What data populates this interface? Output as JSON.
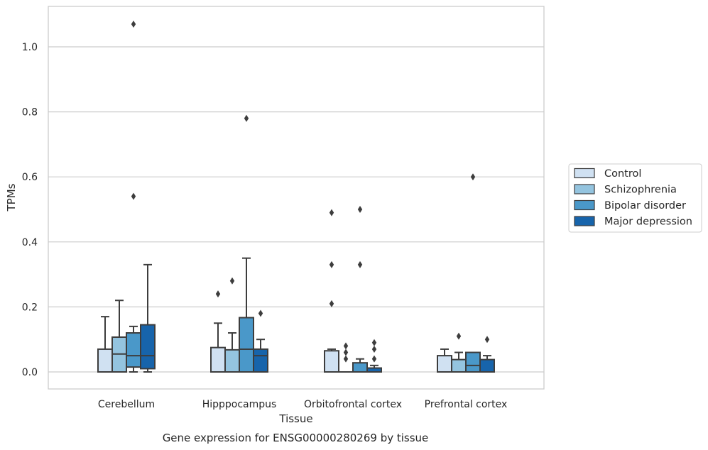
{
  "chart_data": {
    "type": "box",
    "xlabel": "Tissue",
    "ylabel": "TPMs",
    "caption": "Gene expression for ENSG00000280269 by tissue",
    "categories": [
      "Cerebellum",
      "Hipppocampus",
      "Orbitofrontal cortex",
      "Prefrontal cortex"
    ],
    "yticks": [
      0.0,
      0.2,
      0.4,
      0.6,
      0.8,
      1.0
    ],
    "ytick_labels": [
      "0.0",
      "0.2",
      "0.4",
      "0.6",
      "0.8",
      "1.0"
    ],
    "ylim": [
      -0.05,
      1.13
    ],
    "grid": "horizontal",
    "legend_position": "right",
    "series": [
      {
        "name": "Control",
        "color": "#d0e1f2",
        "boxes": [
          {
            "min": 0.0,
            "q1": 0.0,
            "median": 0.0,
            "q3": 0.07,
            "max": 0.17,
            "outliers": []
          },
          {
            "min": 0.0,
            "q1": 0.0,
            "median": 0.0,
            "q3": 0.075,
            "max": 0.15,
            "outliers": [
              0.24
            ]
          },
          {
            "min": 0.0,
            "q1": 0.0,
            "median": 0.0,
            "q3": 0.065,
            "max": 0.07,
            "outliers": [
              0.21,
              0.33,
              0.49
            ]
          },
          {
            "min": 0.0,
            "q1": 0.0,
            "median": 0.0,
            "q3": 0.05,
            "max": 0.07,
            "outliers": []
          }
        ]
      },
      {
        "name": "Schizophrenia",
        "color": "#94c4df",
        "boxes": [
          {
            "min": 0.0,
            "q1": 0.0,
            "median": 0.055,
            "q3": 0.107,
            "max": 0.22,
            "outliers": []
          },
          {
            "min": 0.0,
            "q1": 0.0,
            "median": 0.0,
            "q3": 0.068,
            "max": 0.12,
            "outliers": [
              0.28
            ]
          },
          {
            "min": 0.0,
            "q1": 0.0,
            "median": 0.0,
            "q3": 0.0,
            "max": 0.0,
            "outliers": [
              0.04,
              0.06,
              0.08
            ]
          },
          {
            "min": 0.0,
            "q1": 0.0,
            "median": 0.0,
            "q3": 0.038,
            "max": 0.06,
            "outliers": [
              0.11
            ]
          }
        ]
      },
      {
        "name": "Bipolar disorder",
        "color": "#4a98c9",
        "boxes": [
          {
            "min": 0.0,
            "q1": 0.015,
            "median": 0.05,
            "q3": 0.12,
            "max": 0.14,
            "outliers": [
              0.54,
              1.07
            ]
          },
          {
            "min": 0.0,
            "q1": 0.0,
            "median": 0.07,
            "q3": 0.167,
            "max": 0.35,
            "outliers": [
              0.78
            ]
          },
          {
            "min": 0.0,
            "q1": 0.0,
            "median": 0.0,
            "q3": 0.028,
            "max": 0.04,
            "outliers": [
              0.33,
              0.5
            ]
          },
          {
            "min": 0.0,
            "q1": 0.0,
            "median": 0.02,
            "q3": 0.06,
            "max": 0.06,
            "outliers": [
              0.6
            ]
          }
        ]
      },
      {
        "name": "Major depression",
        "color": "#1764ab",
        "boxes": [
          {
            "min": 0.0,
            "q1": 0.01,
            "median": 0.05,
            "q3": 0.145,
            "max": 0.33,
            "outliers": []
          },
          {
            "min": 0.0,
            "q1": 0.0,
            "median": 0.05,
            "q3": 0.07,
            "max": 0.1,
            "outliers": [
              0.18
            ]
          },
          {
            "min": 0.0,
            "q1": 0.0,
            "median": 0.0,
            "q3": 0.012,
            "max": 0.02,
            "outliers": [
              0.04,
              0.07,
              0.09
            ]
          },
          {
            "min": 0.0,
            "q1": 0.0,
            "median": 0.0,
            "q3": 0.038,
            "max": 0.05,
            "outliers": [
              0.1
            ]
          }
        ]
      }
    ]
  }
}
